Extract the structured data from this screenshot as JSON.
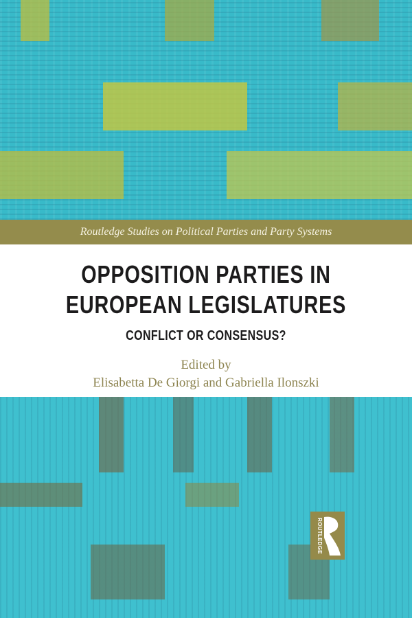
{
  "cover": {
    "series": "Routledge Studies on Political Parties and Party Systems",
    "title_line1": "OPPOSITION PARTIES IN",
    "title_line2": "EUROPEAN LEGISLATURES",
    "subtitle": "CONFLICT OR CONSENSUS?",
    "edited_by": "Edited by",
    "editors": "Elisabetta De Giorgi and Gabriella Ilonszki",
    "publisher_logo": "ROUTLEDGE"
  },
  "colors": {
    "band": "#948c4c",
    "teal": "#38bac9",
    "title": "#1c1b1c",
    "editor_text": "#8d8450"
  }
}
